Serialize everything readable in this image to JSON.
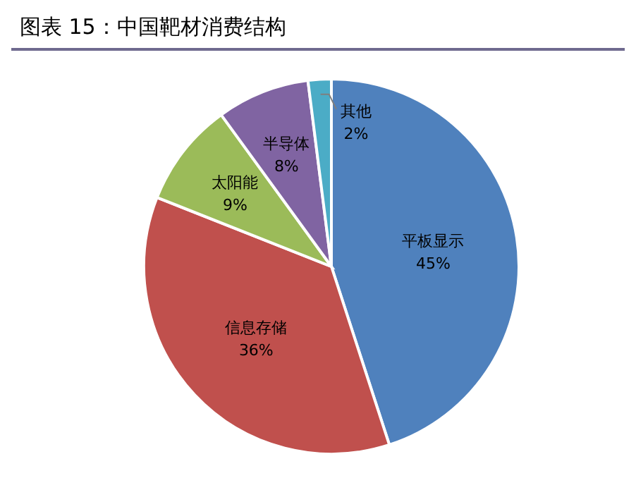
{
  "chart_data": {
    "type": "pie",
    "title": "图表 15：中国靶材消费结构",
    "categories": [
      "平板显示",
      "信息存储",
      "太阳能",
      "半导体",
      "其他"
    ],
    "values": [
      45,
      36,
      9,
      8,
      2
    ],
    "value_labels": [
      "45%",
      "36%",
      "9%",
      "8%",
      "2%"
    ],
    "colors": [
      "#4f81bd",
      "#c0504d",
      "#9bbb59",
      "#8064a2",
      "#4bacc6"
    ],
    "legend": false
  }
}
